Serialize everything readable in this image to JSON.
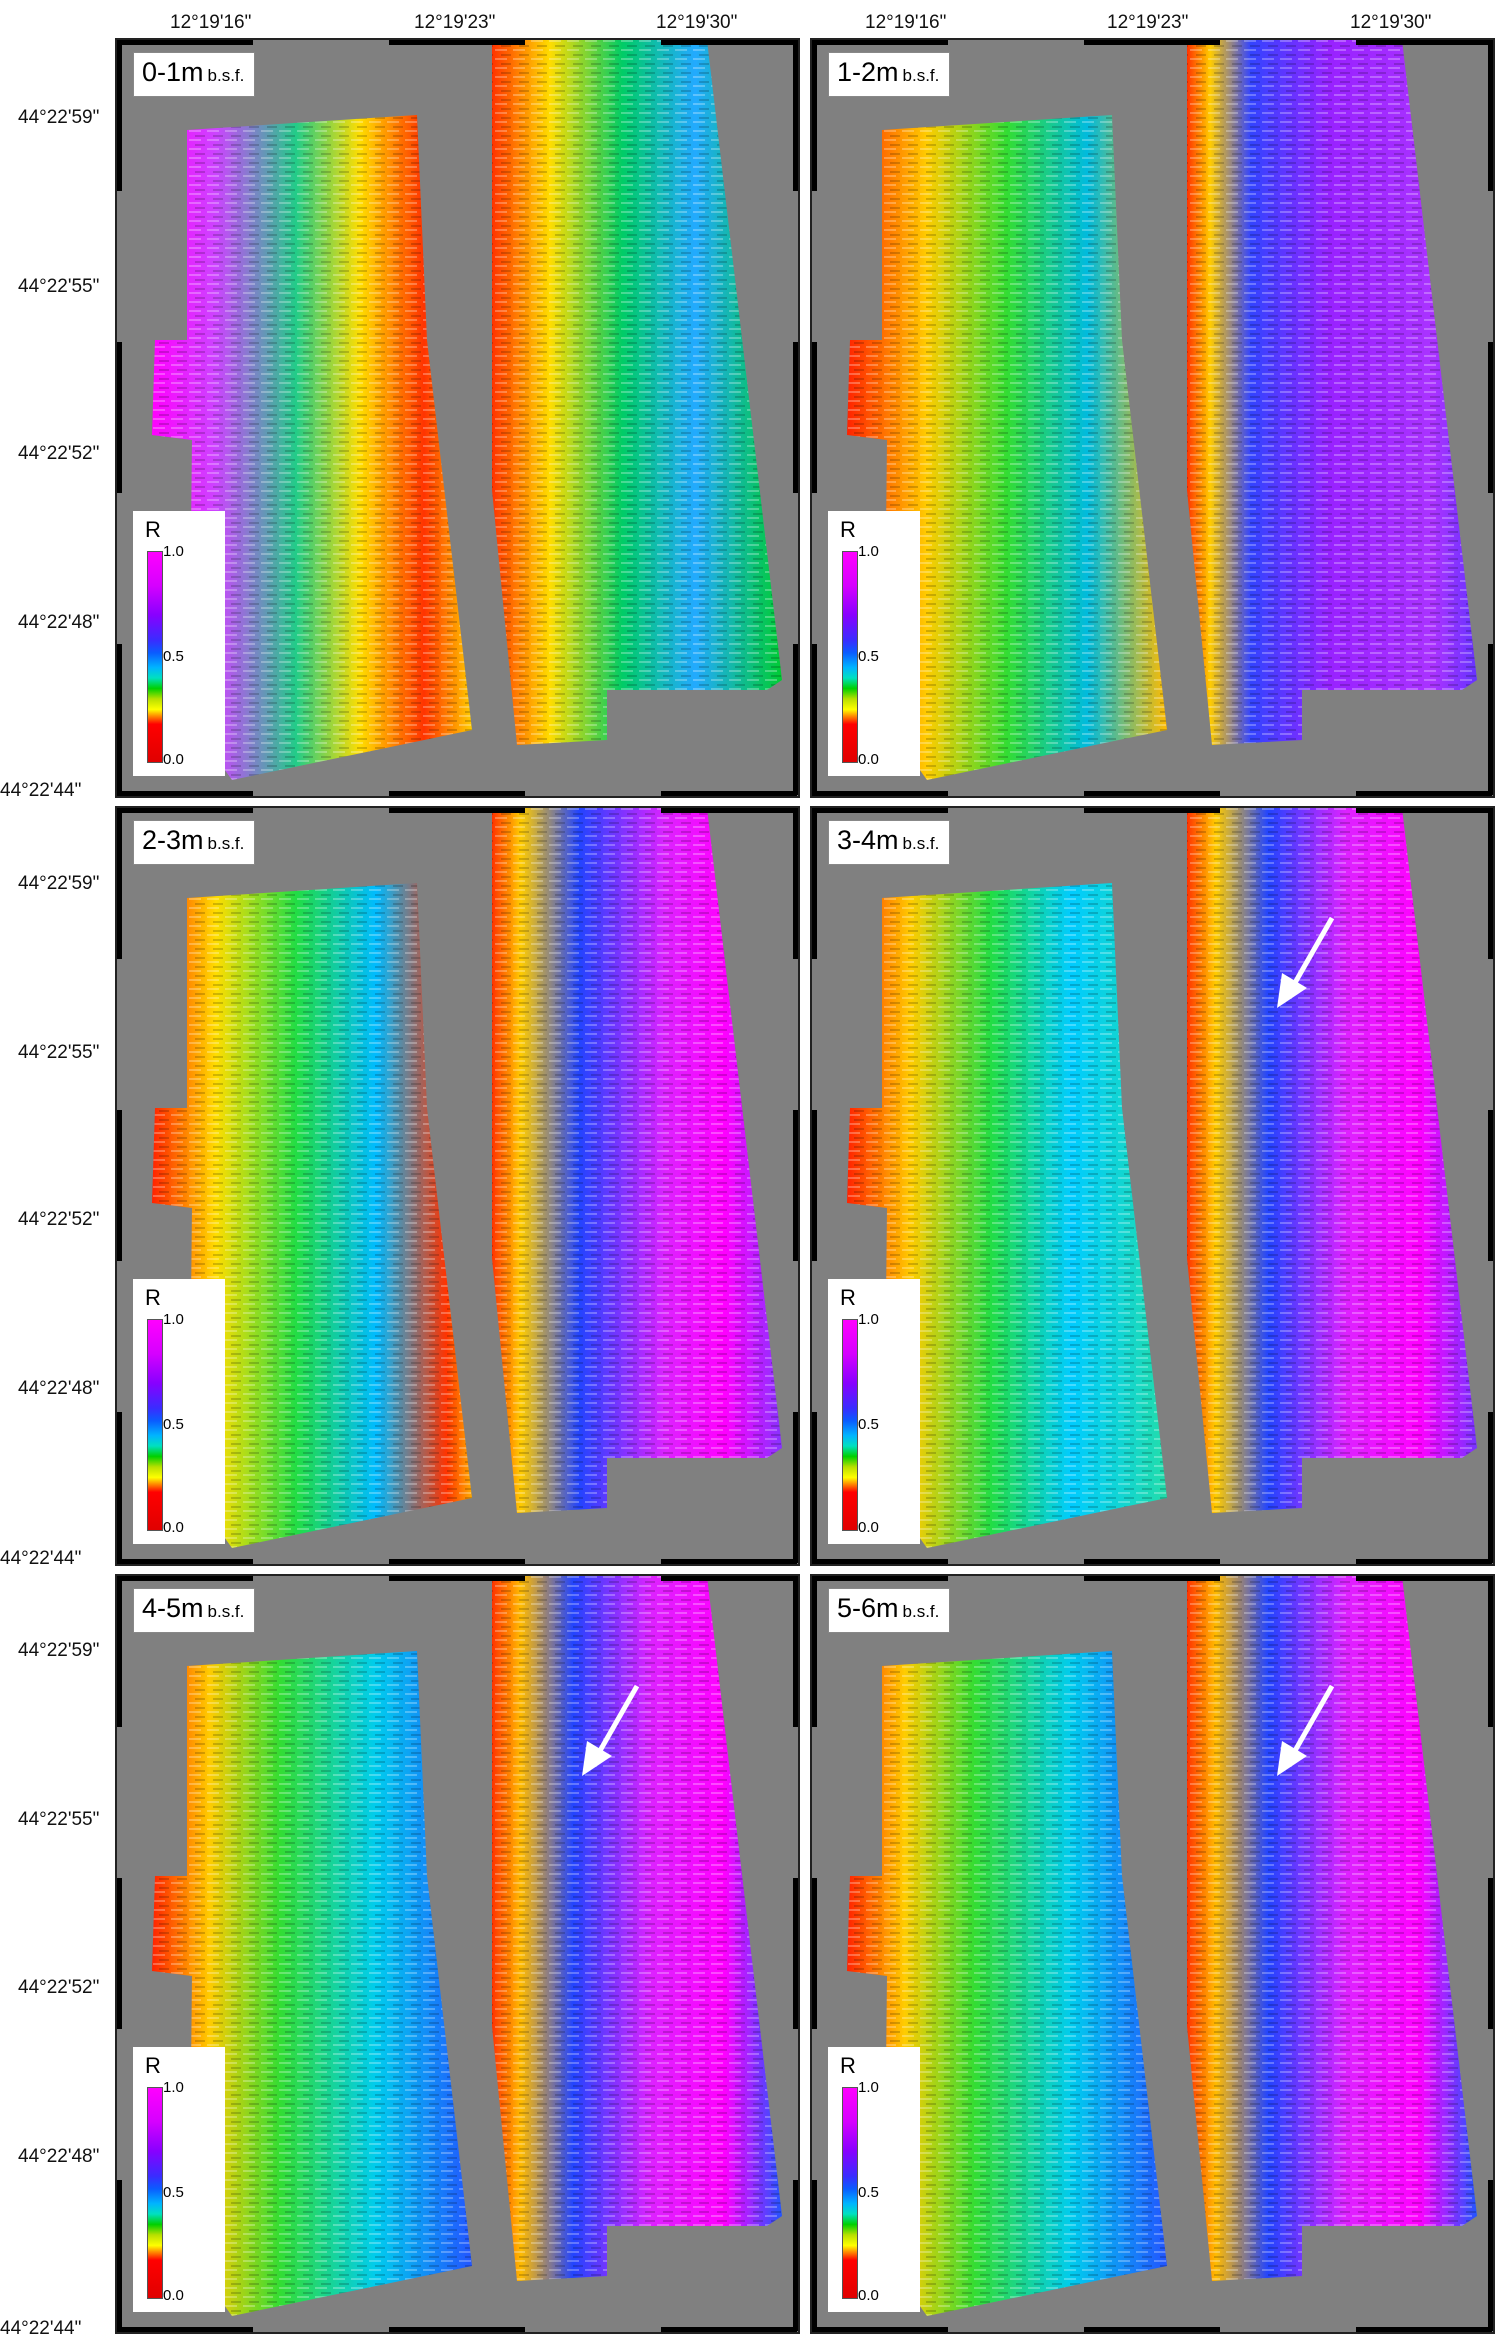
{
  "top_axis": {
    "left_panel_ticks": [
      "12°19'16\"",
      "12°19'23\"",
      "12°19'30\""
    ],
    "right_panel_ticks": [
      "12°19'16\"",
      "12°19'23\"",
      "12°19'30\""
    ]
  },
  "left_axis": {
    "row1": [
      "44°22'59\"",
      "44°22'55\"",
      "44°22'52\"",
      "44°22'48\"",
      "44°22'44\""
    ],
    "row2": [
      "44°22'59\"",
      "44°22'55\"",
      "44°22'52\"",
      "44°22'48\"",
      "44°22'44\""
    ],
    "row3": [
      "44°22'59\"",
      "44°22'55\"",
      "44°22'52\"",
      "44°22'48\"",
      "44°22'44\""
    ]
  },
  "panels": [
    {
      "depth": "0-1m",
      "unit": "b.s.f.",
      "arrow": false
    },
    {
      "depth": "1-2m",
      "unit": "b.s.f.",
      "arrow": false
    },
    {
      "depth": "2-3m",
      "unit": "b.s.f.",
      "arrow": false
    },
    {
      "depth": "3-4m",
      "unit": "b.s.f.",
      "arrow": true
    },
    {
      "depth": "4-5m",
      "unit": "b.s.f.",
      "arrow": true
    },
    {
      "depth": "5-6m",
      "unit": "b.s.f.",
      "arrow": true
    }
  ],
  "legend": {
    "title": "R",
    "ticks": [
      "1.0",
      "0.5",
      "0.0"
    ]
  },
  "colors": {
    "background": "#808080",
    "scale_high": "#ff00ff",
    "scale_mid": "#0a5cff",
    "scale_low": "#ff0000"
  }
}
